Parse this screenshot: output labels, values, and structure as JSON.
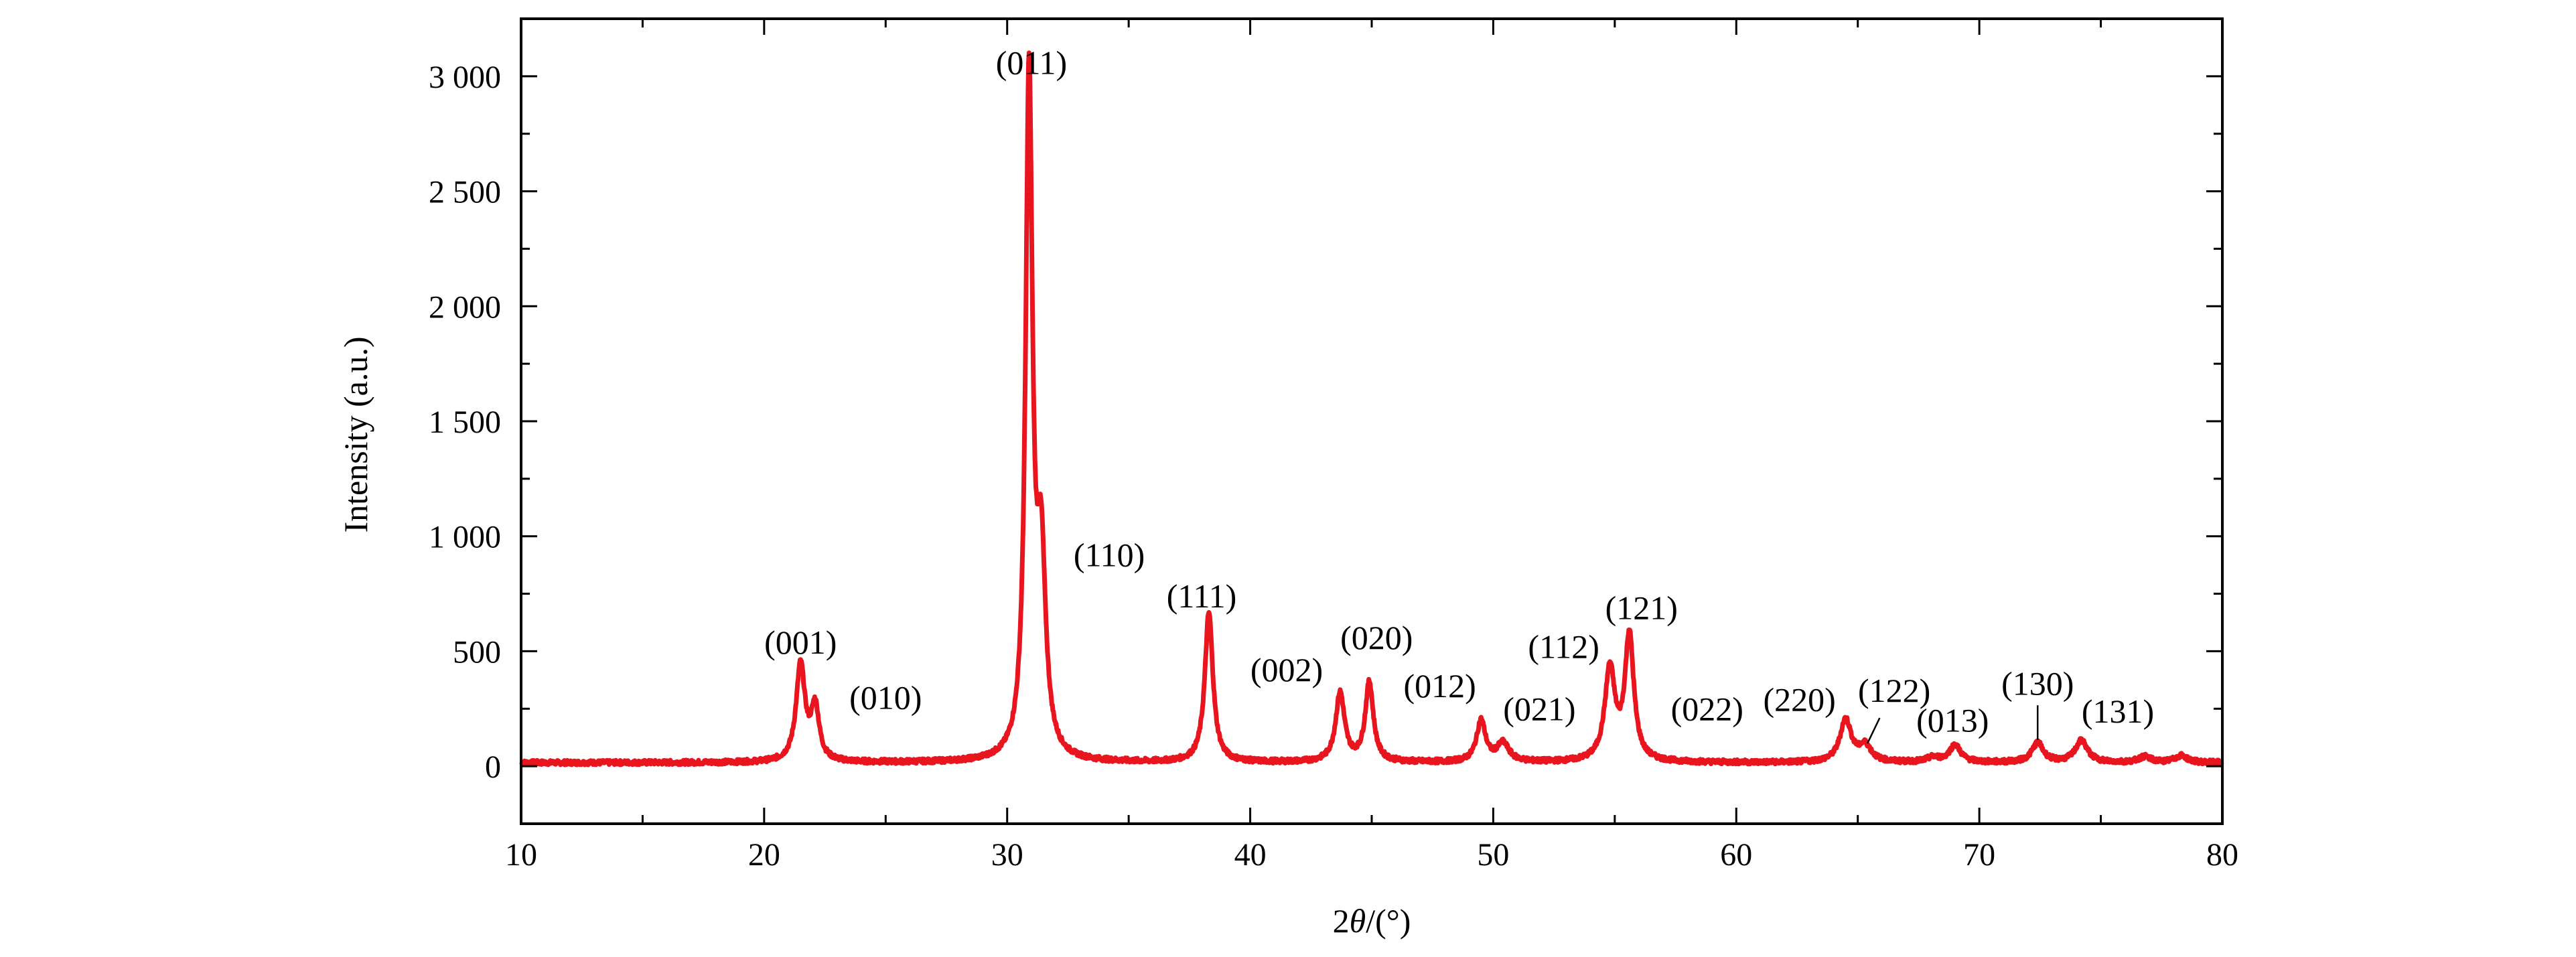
{
  "chart_data": {
    "type": "line",
    "title": "",
    "xlabel_prefix": "2",
    "xlabel_symbol": "θ",
    "xlabel_suffix": "/(°)",
    "ylabel": "Intensity  (a.u.)",
    "xlim": [
      10,
      80
    ],
    "ylim": [
      -250,
      3250
    ],
    "x_ticks": [
      10,
      20,
      30,
      40,
      50,
      60,
      70,
      80
    ],
    "x_tick_labels": [
      "10",
      "20",
      "30",
      "40",
      "50",
      "60",
      "70",
      "80"
    ],
    "y_ticks": [
      0,
      500,
      1000,
      1500,
      2000,
      2500,
      3000
    ],
    "y_tick_labels": [
      "0",
      "500",
      "1 000",
      "1 500",
      "2 000",
      "2 500",
      "3 000"
    ],
    "grid": false,
    "line_color": "#e8141e",
    "baseline": 15,
    "peaks": [
      {
        "x": 21.5,
        "y": 420,
        "w": 0.22
      },
      {
        "x": 22.1,
        "y": 230,
        "w": 0.2
      },
      {
        "x": 30.9,
        "y": 2950,
        "w": 0.17
      },
      {
        "x": 31.4,
        "y": 830,
        "w": 0.22
      },
      {
        "x": 38.3,
        "y": 650,
        "w": 0.2
      },
      {
        "x": 43.7,
        "y": 300,
        "w": 0.22
      },
      {
        "x": 44.9,
        "y": 345,
        "w": 0.2
      },
      {
        "x": 49.5,
        "y": 180,
        "w": 0.22
      },
      {
        "x": 50.4,
        "y": 80,
        "w": 0.3
      },
      {
        "x": 54.8,
        "y": 400,
        "w": 0.25
      },
      {
        "x": 55.6,
        "y": 545,
        "w": 0.22
      },
      {
        "x": 64.5,
        "y": 185,
        "w": 0.28
      },
      {
        "x": 65.3,
        "y": 70,
        "w": 0.3
      },
      {
        "x": 68.1,
        "y": 20,
        "w": 0.3
      },
      {
        "x": 69.0,
        "y": 75,
        "w": 0.28
      },
      {
        "x": 72.4,
        "y": 85,
        "w": 0.28
      },
      {
        "x": 74.2,
        "y": 95,
        "w": 0.3
      },
      {
        "x": 76.8,
        "y": 25,
        "w": 0.3
      },
      {
        "x": 78.3,
        "y": 30,
        "w": 0.3
      }
    ],
    "annotations": [
      {
        "text": "(001)",
        "x": 21.5,
        "y": 490
      },
      {
        "text": "(010)",
        "x": 25.0,
        "y": 250
      },
      {
        "text": "(011)",
        "x": 31.0,
        "y": 3010
      },
      {
        "text": "(110)",
        "x": 34.2,
        "y": 870
      },
      {
        "text": "(111)",
        "x": 38.0,
        "y": 690
      },
      {
        "text": "(002)",
        "x": 41.5,
        "y": 370
      },
      {
        "text": "(020)",
        "x": 45.2,
        "y": 510
      },
      {
        "text": "(012)",
        "x": 47.8,
        "y": 300
      },
      {
        "text": "(021)",
        "x": 51.9,
        "y": 200
      },
      {
        "text": "(112)",
        "x": 52.9,
        "y": 470
      },
      {
        "text": "(121)",
        "x": 56.1,
        "y": 640
      },
      {
        "text": "(022)",
        "x": 58.8,
        "y": 200
      },
      {
        "text": "(220)",
        "x": 62.6,
        "y": 240
      },
      {
        "text": "(122)",
        "x": 66.5,
        "y": 280
      },
      {
        "text": "(013)",
        "x": 68.9,
        "y": 150
      },
      {
        "text": "(130)",
        "x": 72.4,
        "y": 310
      },
      {
        "text": "(131)",
        "x": 75.7,
        "y": 190
      }
    ]
  }
}
